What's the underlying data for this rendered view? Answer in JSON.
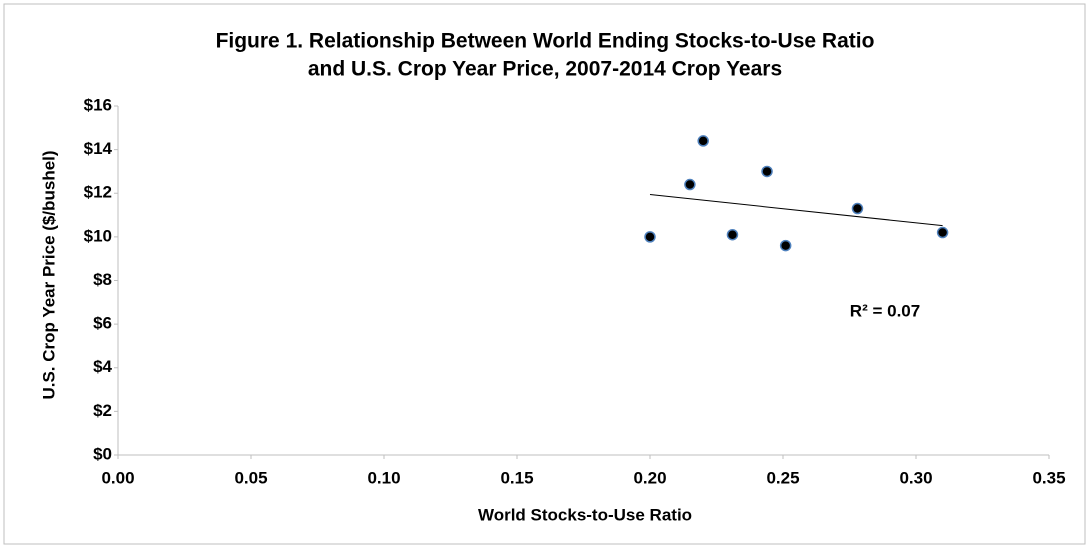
{
  "chart_data": {
    "type": "scatter",
    "title": [
      "Figure 1.  Relationship Between World Ending Stocks-to-Use Ratio",
      "and U.S. Crop Year Price, 2007-2014 Crop Years"
    ],
    "xlabel": "World Stocks-to-Use Ratio",
    "ylabel": "U.S. Crop Year Price ($/bushel)",
    "annotation": "R² = 0.07",
    "trendline": true,
    "series": [
      {
        "color": "#000000",
        "edge_color": "#4f81bd",
        "x": [
          0.2,
          0.215,
          0.22,
          0.231,
          0.244,
          0.251,
          0.278,
          0.31
        ],
        "values": [
          10.0,
          12.4,
          14.4,
          10.1,
          13.0,
          9.6,
          11.3,
          10.2
        ]
      }
    ],
    "xlim": [
      0,
      0.35
    ],
    "xticks": [
      {
        "value": 0,
        "label": "0.00"
      },
      0.05,
      {
        "value": 0.1,
        "label": "0.10"
      },
      0.15,
      {
        "value": 0.2,
        "label": "0.20"
      },
      0.25,
      {
        "value": 0.3,
        "label": "0.30"
      },
      0.35
    ],
    "ylim": [
      0,
      16
    ],
    "yticks": [
      {
        "value": 0,
        "label": "$0"
      },
      {
        "value": 2,
        "label": "$2"
      },
      {
        "value": 4,
        "label": "$4"
      },
      {
        "value": 6,
        "label": "$6"
      },
      {
        "value": 8,
        "label": "$8"
      },
      {
        "value": 10,
        "label": "$10"
      },
      {
        "value": 12,
        "label": "$12"
      },
      {
        "value": 14,
        "label": "$14"
      },
      {
        "value": 16,
        "label": "$16"
      }
    ],
    "grid": false
  }
}
